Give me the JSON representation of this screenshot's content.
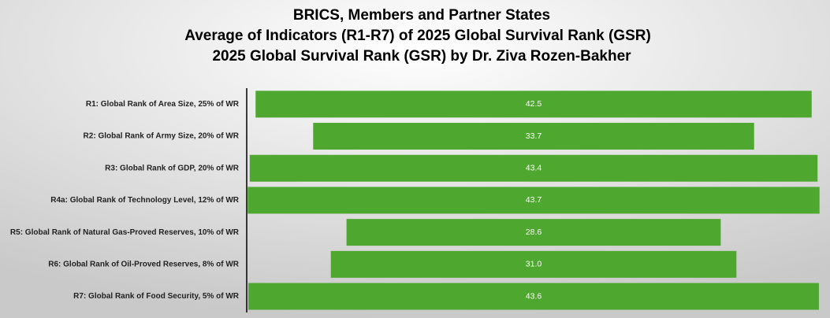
{
  "chart_data": {
    "type": "funnel",
    "title": [
      "BRICS, Members and Partner States",
      "Average of Indicators (R1-R7) of 2025 Global Survival Rank (GSR)",
      "2025 Global Survival Rank (GSR) by Dr. Ziva Rozen-Bakher"
    ],
    "categories": [
      "R1: Global Rank of Area Size, 25% of WR",
      "R2: Global Rank of Army Size, 20% of WR",
      "R3: Global Rank of GDP, 20% of WR",
      "R4a: Global Rank of Technology Level, 12% of WR",
      "R5: Global Rank of Natural Gas-Proved Reserves, 10% of WR",
      "R6: Global Rank of Oil-Proved Reserves, 8% of WR",
      "R7: Global Rank of Food Security, 5% of WR"
    ],
    "values": [
      42.5,
      33.7,
      43.4,
      43.7,
      28.6,
      31.0,
      43.6
    ],
    "value_labels": [
      "42.5",
      "33.7",
      "43.4",
      "43.7",
      "28.6",
      "31.0",
      "43.6"
    ],
    "color": "#4ea72e"
  }
}
